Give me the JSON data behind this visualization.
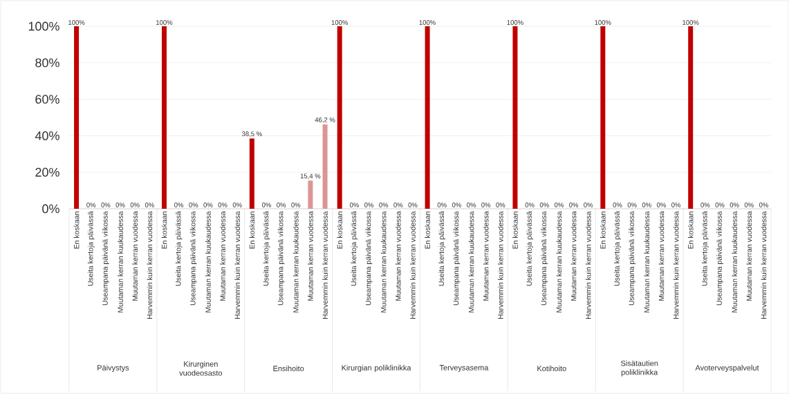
{
  "chart_data": {
    "type": "bar",
    "categories": [
      "En koskaan",
      "Useita kertoja päivässä",
      "Useampana päivänä viikossa",
      "Muutaman kerran kuukaudessa",
      "Muutaman kerran vuodessa",
      "Harvemmin kuin kerran vuodessa",
      "En koskaan",
      "Useita kertoja päivässä",
      "Useampana päivänä viikossa",
      "Muutaman kerran kuukaudessa",
      "Muutaman kerran vuodessa",
      "Harvemmin kuin kerran vuodessa",
      "En koskaan",
      "Useita kertoja päivässä",
      "Useampana päivänä viikossa",
      "Muutaman kerran kuukaudessa",
      "Muutaman kerran vuodessa",
      "Harvemmin kuin kerran vuodessa",
      "En koskaan",
      "Useita kertoja päivässä",
      "Useampana päivänä viikossa",
      "Muutaman kerran kuukaudessa",
      "Muutaman kerran vuodessa",
      "Harvemmin kuin kerran vuodessa",
      "En koskaan",
      "Useita kertoja päivässä",
      "Useampana päivänä viikossa",
      "Muutaman kerran kuukaudessa",
      "Muutaman kerran vuodessa",
      "Harvemmin kuin kerran vuodessa",
      "En koskaan",
      "Useita kertoja päivässä",
      "Useampana päivänä viikossa",
      "Muutaman kerran kuukaudessa",
      "Muutaman kerran vuodessa",
      "Harvemmin kuin kerran vuodessa",
      "En koskaan",
      "Useita kertoja päivässä",
      "Useampana päivänä viikossa",
      "Muutaman kerran kuukaudessa",
      "Muutaman kerran vuodessa",
      "Harvemmin kuin kerran vuodessa",
      "En koskaan",
      "Useita kertoja päivässä",
      "Useampana päivänä viikossa",
      "Muutaman kerran kuukaudessa",
      "Muutaman kerran vuodessa",
      "Harvemmin kuin kerran vuodessa"
    ],
    "values": [
      100,
      0,
      0,
      0,
      0,
      0,
      100,
      0,
      0,
      0,
      0,
      0,
      38.5,
      0,
      0,
      0,
      15.4,
      46.2,
      100,
      0,
      0,
      0,
      0,
      0,
      100,
      0,
      0,
      0,
      0,
      0,
      100,
      0,
      0,
      0,
      0,
      0,
      100,
      0,
      0,
      0,
      0,
      0,
      100,
      0,
      0,
      0,
      0,
      0
    ],
    "colors": [
      "#c00000",
      "#c00000",
      "#c00000",
      "#c00000",
      "#c00000",
      "#c00000",
      "#c00000",
      "#c00000",
      "#c00000",
      "#c00000",
      "#c00000",
      "#c00000",
      "#c00000",
      "#c00000",
      "#c00000",
      "#c00000",
      "#da9694",
      "#da9694",
      "#c00000",
      "#c00000",
      "#c00000",
      "#c00000",
      "#c00000",
      "#c00000",
      "#c00000",
      "#c00000",
      "#c00000",
      "#c00000",
      "#c00000",
      "#c00000",
      "#c00000",
      "#c00000",
      "#c00000",
      "#c00000",
      "#c00000",
      "#c00000",
      "#c00000",
      "#c00000",
      "#c00000",
      "#c00000",
      "#c00000",
      "#c00000",
      "#c00000",
      "#c00000",
      "#c00000",
      "#c00000",
      "#c00000",
      "#c00000"
    ],
    "value_labels": [
      "100%",
      "0%",
      "0%",
      "0%",
      "0%",
      "0%",
      "100%",
      "0%",
      "0%",
      "0%",
      "0%",
      "0%",
      "38,5 %",
      "0%",
      "0%",
      "0%",
      "15,4 %",
      "46,2 %",
      "100%",
      "0%",
      "0%",
      "0%",
      "0%",
      "0%",
      "100%",
      "0%",
      "0%",
      "0%",
      "0%",
      "0%",
      "100%",
      "0%",
      "0%",
      "0%",
      "0%",
      "0%",
      "100%",
      "0%",
      "0%",
      "0%",
      "0%",
      "0%",
      "100%",
      "0%",
      "0%",
      "0%",
      "0%",
      "0%"
    ],
    "annotations": [
      "Päivystys",
      "Kirurginen vuodeosasto",
      "Ensihoito",
      "Kirurgian poliklinikka",
      "Terveysasema",
      "Kotihoito",
      "Sisätautien poliklinikka",
      "Avoterveyspalvelut"
    ],
    "ylim": [
      0,
      100
    ],
    "yticks": [
      {
        "value": 0,
        "label": "0%"
      },
      {
        "value": 20,
        "label": "20%"
      },
      {
        "value": 40,
        "label": "40%"
      },
      {
        "value": 60,
        "label": "60%"
      },
      {
        "value": 80,
        "label": "80%"
      },
      {
        "value": 100,
        "label": "100%"
      }
    ],
    "grid": "y"
  }
}
